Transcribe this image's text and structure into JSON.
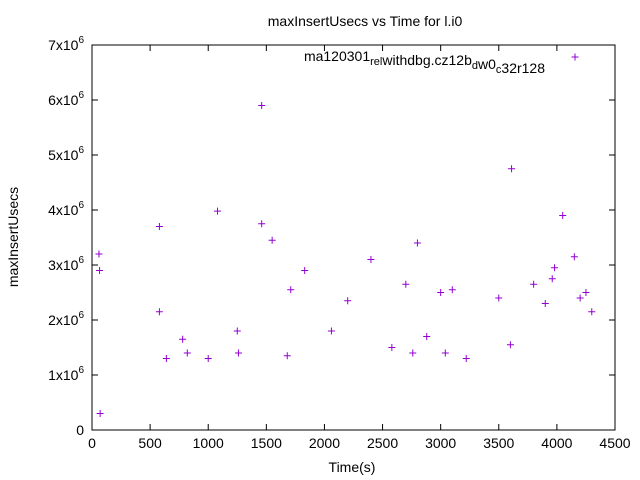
{
  "chart_data": {
    "type": "scatter",
    "title": "maxInsertUsecs vs Time for l.i0",
    "xlabel": "Time(s)",
    "ylabel": "maxInsertUsecs",
    "xlim": [
      0,
      4500
    ],
    "ylim": [
      0,
      7000000
    ],
    "x_ticks": [
      "0",
      "500",
      "1000",
      "1500",
      "2000",
      "2500",
      "3000",
      "3500",
      "4000",
      "4500"
    ],
    "x_tick_values": [
      0,
      500,
      1000,
      1500,
      2000,
      2500,
      3000,
      3500,
      4000,
      4500
    ],
    "y_ticks": [
      {
        "value": 0,
        "base": "0",
        "exp": ""
      },
      {
        "value": 1000000,
        "base": "1x10",
        "exp": "6"
      },
      {
        "value": 2000000,
        "base": "2x10",
        "exp": "6"
      },
      {
        "value": 3000000,
        "base": "3x10",
        "exp": "6"
      },
      {
        "value": 4000000,
        "base": "4x10",
        "exp": "6"
      },
      {
        "value": 5000000,
        "base": "5x10",
        "exp": "6"
      },
      {
        "value": 6000000,
        "base": "6x10",
        "exp": "6"
      },
      {
        "value": 7000000,
        "base": "7x10",
        "exp": "6"
      }
    ],
    "grid": false,
    "legend_position": "top-right",
    "series": [
      {
        "name": "ma120301_rel_withdbg.cz12b_dw0_c32r128",
        "legend_parts": [
          {
            "text": "ma120301",
            "sub": false
          },
          {
            "text": "rel",
            "sub": true
          },
          {
            "text": "w",
            "sub": false
          },
          {
            "text": "ithdbg.cz12b",
            "sub": false
          },
          {
            "text": "d",
            "sub": true
          },
          {
            "text": "w0",
            "sub": false
          },
          {
            "text": "c",
            "sub": true
          },
          {
            "text": "32r128",
            "sub": false
          }
        ],
        "color": "#9400d3",
        "marker": "+",
        "points": [
          [
            60,
            3200000
          ],
          [
            65,
            2900000
          ],
          [
            70,
            300000
          ],
          [
            1460,
            5900000
          ],
          [
            3610,
            4750000
          ],
          [
            4050,
            3900000
          ],
          [
            1080,
            3980000
          ],
          [
            1460,
            3750000
          ],
          [
            580,
            3700000
          ],
          [
            4150,
            3150000
          ],
          [
            3600,
            1550000
          ],
          [
            2580,
            1500000
          ],
          [
            1550,
            3450000
          ],
          [
            4250,
            2500000
          ],
          [
            4300,
            2150000
          ],
          [
            580,
            2150000
          ],
          [
            1260,
            1400000
          ],
          [
            1250,
            1800000
          ],
          [
            2060,
            1800000
          ],
          [
            1680,
            1350000
          ],
          [
            2760,
            1400000
          ],
          [
            2880,
            1700000
          ],
          [
            3040,
            1400000
          ],
          [
            3220,
            1300000
          ],
          [
            1000,
            1300000
          ],
          [
            780,
            1650000
          ],
          [
            640,
            1300000
          ],
          [
            820,
            1400000
          ],
          [
            3000,
            2500000
          ],
          [
            3100,
            2550000
          ],
          [
            3500,
            2400000
          ],
          [
            3900,
            2300000
          ],
          [
            4200,
            2400000
          ],
          [
            3960,
            2750000
          ],
          [
            2400,
            3100000
          ],
          [
            2800,
            3400000
          ],
          [
            3980,
            2950000
          ],
          [
            3800,
            2650000
          ],
          [
            1830,
            2900000
          ],
          [
            2700,
            2650000
          ],
          [
            2200,
            2350000
          ],
          [
            1710,
            2550000
          ]
        ]
      }
    ]
  }
}
